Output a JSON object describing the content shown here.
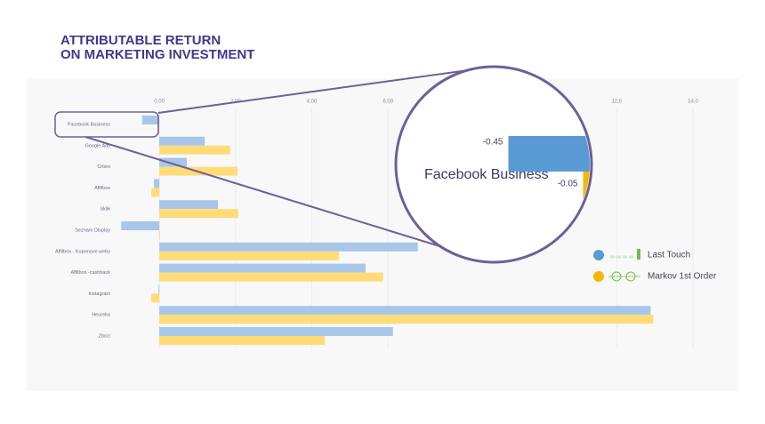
{
  "chart_data": {
    "type": "hbar",
    "title": [
      "ATTRIBUTABLE RETURN",
      "ON MARKETING INVESTMENT"
    ],
    "categories": [
      "Facebook Business",
      "Google Ads",
      "Criteo",
      "Affilbox",
      "Sklik",
      "Seznam Display",
      "Affilbox - Kuponove weby",
      "Affilbox -cashback",
      "Instagram",
      "Heureka",
      "Zbozi"
    ],
    "series": [
      {
        "name": "Last Touch",
        "color": "#a8c6e8",
        "values": [
          -0.45,
          1.19,
          0.72,
          -0.14,
          1.54,
          -1.0,
          6.78,
          5.41,
          -0.02,
          12.89,
          6.13
        ]
      },
      {
        "name": "Markov 1st Order",
        "color": "#ffdc78",
        "values": [
          -0.05,
          1.86,
          2.05,
          -0.21,
          2.07,
          0.02,
          4.71,
          5.87,
          -0.21,
          12.96,
          4.34
        ]
      }
    ],
    "xlim": [
      -1.17,
      14.0
    ],
    "xticks": [
      {
        "value": 0,
        "label": "0,00"
      },
      {
        "value": 2,
        "label": "2,00"
      },
      {
        "value": 4,
        "label": "4,00"
      },
      {
        "value": 6,
        "label": "6,00"
      },
      {
        "value": 12,
        "label": "12,0"
      },
      {
        "value": 14,
        "label": "14,0"
      }
    ],
    "grid": true,
    "legend": "right"
  }
}
